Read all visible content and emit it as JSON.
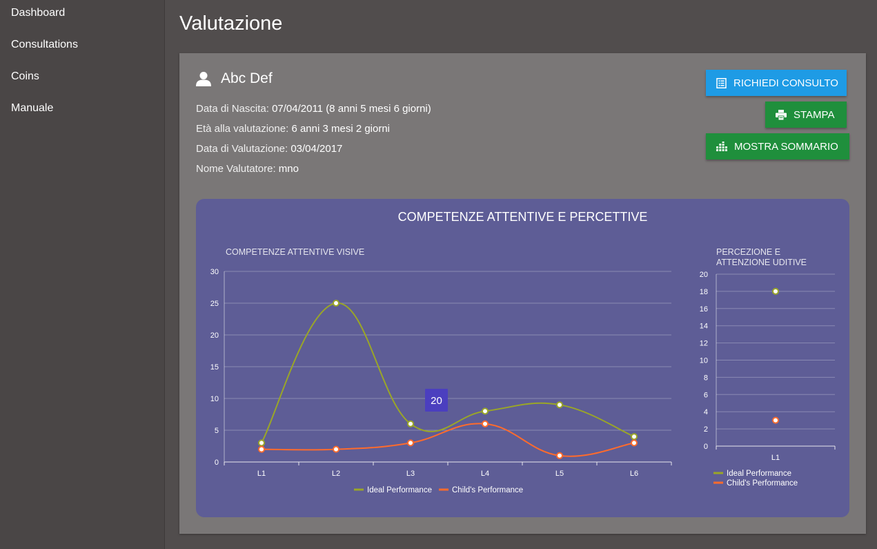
{
  "sidebar": {
    "items": [
      {
        "label": "Dashboard"
      },
      {
        "label": "Consultations"
      },
      {
        "label": "Coins"
      },
      {
        "label": "Manuale"
      }
    ]
  },
  "page": {
    "title": "Valutazione"
  },
  "patient": {
    "name": "Abc Def",
    "birth_label": "Data di Nascita:",
    "birth_value": "07/04/2011 (8 anni 5 mesi 6 giorni)",
    "age_label": "Età alla valutazione:",
    "age_value": "6 anni 3 mesi 2 giorni",
    "eval_date_label": "Data di Valutazione:",
    "eval_date_value": "03/04/2017",
    "evaluator_label": "Nome Valutatore:",
    "evaluator_value": "mno"
  },
  "buttons": {
    "consult": "RICHIEDI CONSULTO",
    "print": "STAMPA",
    "summary": "MOSTRA SOMMARIO"
  },
  "colors": {
    "ideal": "#9aa627",
    "child": "#ff6b2c",
    "panel": "#5e5d96",
    "tooltip": "#4b3fbf"
  },
  "panel": {
    "title": "COMPETENZE ATTENTIVE E PERCETTIVE"
  },
  "chart_data": [
    {
      "type": "line",
      "title": "COMPETENZE ATTENTIVE VISIVE",
      "categories": [
        "L1",
        "L2",
        "L3",
        "L4",
        "L5",
        "L6"
      ],
      "ylim": [
        0,
        30
      ],
      "yticks": [
        0,
        5,
        10,
        15,
        20,
        25,
        30
      ],
      "grid": true,
      "legend": "bottom",
      "series": [
        {
          "name": "Ideal Performance",
          "values": [
            3,
            25,
            6,
            8,
            9,
            4
          ]
        },
        {
          "name": "Child's Performance",
          "values": [
            2,
            2,
            3,
            6,
            1,
            3
          ]
        }
      ],
      "tooltip": {
        "text": "20"
      }
    },
    {
      "type": "scatter",
      "title": "PERCEZIONE E ATTENZIONE UDITIVE",
      "title_lines": [
        "PERCEZIONE E",
        "ATTENZIONE UDITIVE"
      ],
      "categories": [
        "L1"
      ],
      "ylim": [
        0,
        20
      ],
      "yticks": [
        0,
        2,
        4,
        6,
        8,
        10,
        12,
        14,
        16,
        18,
        20
      ],
      "grid": true,
      "legend": "bottom",
      "series": [
        {
          "name": "Ideal Performance",
          "values": [
            18
          ]
        },
        {
          "name": "Child's Performance",
          "values": [
            3
          ]
        }
      ]
    }
  ]
}
